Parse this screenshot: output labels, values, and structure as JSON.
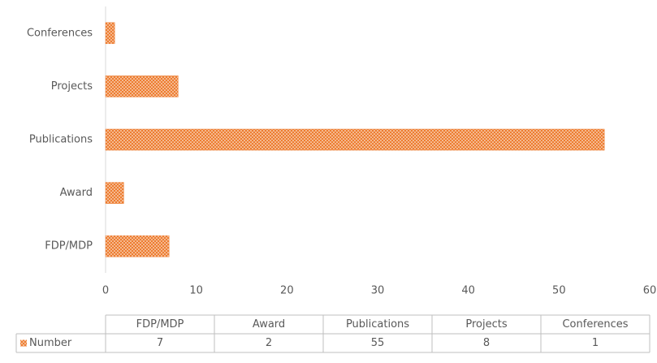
{
  "chart_data": {
    "type": "bar",
    "orientation": "horizontal",
    "categories": [
      "FDP/MDP",
      "Award",
      "Publications",
      "Projects",
      "Conferences"
    ],
    "series": [
      {
        "name": "Number",
        "color": "#ed7d31",
        "values": [
          7,
          2,
          55,
          8,
          1
        ]
      }
    ],
    "xlim": [
      0,
      60
    ],
    "xticks": [
      0,
      10,
      20,
      30,
      40,
      50,
      60
    ],
    "grid": false,
    "data_table": true
  }
}
